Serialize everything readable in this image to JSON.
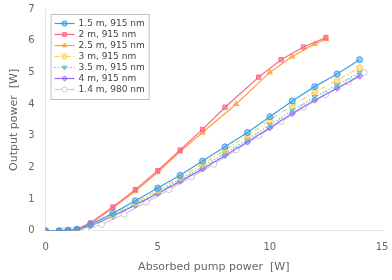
{
  "chart_data": {
    "type": "line",
    "xlabel": "Absorbed pump power  [W]",
    "ylabel": "Output power  [W]",
    "xlim": [
      0,
      15
    ],
    "ylim": [
      0,
      7
    ],
    "xticks": [
      0,
      5,
      10,
      15
    ],
    "yticks": [
      0,
      1,
      2,
      3,
      4,
      5,
      6,
      7
    ],
    "grid": false,
    "legend": "upper left",
    "series": [
      {
        "name": "1.5 m, 915 nm",
        "marker": "circle",
        "line_style": "solid",
        "x": [
          0.0,
          0.6,
          1.0,
          1.4,
          2.0,
          3.0,
          4.0,
          5.0,
          6.0,
          7.0,
          8.0,
          9.0,
          10.0,
          11.0,
          12.0,
          13.0,
          14.0
        ],
        "values": [
          0.0,
          0.0,
          0.02,
          0.05,
          0.2,
          0.55,
          0.95,
          1.35,
          1.75,
          2.2,
          2.65,
          3.1,
          3.6,
          4.1,
          4.55,
          4.95,
          5.4
        ]
      },
      {
        "name": "2 m, 915 nm",
        "marker": "square",
        "line_style": "solid",
        "x": [
          0.0,
          0.6,
          1.0,
          1.4,
          2.0,
          3.0,
          4.0,
          5.0,
          6.0,
          7.0,
          8.0,
          9.5,
          10.5,
          11.5,
          12.5
        ],
        "values": [
          0.0,
          0.0,
          0.02,
          0.05,
          0.25,
          0.75,
          1.3,
          1.9,
          2.55,
          3.2,
          3.9,
          4.85,
          5.4,
          5.8,
          6.1
        ]
      },
      {
        "name": "2.5 m, 915 nm",
        "marker": "triangle",
        "line_style": "solid",
        "x": [
          0.0,
          0.6,
          1.0,
          1.4,
          2.0,
          3.0,
          4.0,
          5.0,
          6.0,
          7.0,
          8.5,
          10.0,
          11.0,
          12.0,
          12.5
        ],
        "values": [
          0.0,
          0.0,
          0.02,
          0.05,
          0.22,
          0.72,
          1.25,
          1.85,
          2.5,
          3.1,
          4.0,
          5.0,
          5.5,
          5.9,
          6.05
        ]
      },
      {
        "name": "3 m, 915 nm",
        "marker": "circle",
        "line_style": "dashdot",
        "x": [
          0.0,
          0.6,
          1.0,
          1.4,
          2.0,
          3.0,
          4.0,
          5.0,
          6.0,
          7.0,
          8.0,
          9.0,
          10.0,
          11.0,
          12.0,
          13.0,
          14.0
        ],
        "values": [
          0.0,
          0.0,
          0.02,
          0.05,
          0.18,
          0.5,
          0.88,
          1.28,
          1.68,
          2.1,
          2.55,
          3.0,
          3.5,
          3.95,
          4.38,
          4.75,
          5.15
        ]
      },
      {
        "name": "3.5 m, 915 nm",
        "marker": "triangle_down",
        "line_style": "dotted",
        "x": [
          0.0,
          0.6,
          1.0,
          1.4,
          2.0,
          3.0,
          4.0,
          5.0,
          6.0,
          7.0,
          8.0,
          9.0,
          10.0,
          11.0,
          12.0,
          13.0,
          14.0
        ],
        "values": [
          0.0,
          0.0,
          0.02,
          0.04,
          0.16,
          0.48,
          0.84,
          1.22,
          1.62,
          2.02,
          2.45,
          2.88,
          3.35,
          3.8,
          4.22,
          4.6,
          5.0
        ]
      },
      {
        "name": "4 m, 915 nm",
        "marker": "diamond",
        "line_style": "solid",
        "x": [
          0.0,
          0.6,
          1.0,
          1.4,
          2.0,
          3.0,
          4.0,
          5.0,
          6.0,
          7.0,
          8.0,
          9.0,
          10.0,
          11.0,
          12.0,
          13.0,
          14.0
        ],
        "values": [
          0.0,
          0.0,
          0.02,
          0.04,
          0.15,
          0.46,
          0.81,
          1.18,
          1.56,
          1.95,
          2.38,
          2.8,
          3.25,
          3.7,
          4.12,
          4.5,
          4.88
        ]
      },
      {
        "name": "1.4 m, 980 nm",
        "marker": "open_circle",
        "line_style": "solid",
        "x": [
          0.0,
          0.8,
          1.2,
          1.8,
          2.5,
          3.5,
          4.5,
          5.5,
          6.5,
          7.5,
          8.5,
          9.5,
          10.5,
          11.5,
          12.5,
          13.5,
          14.2
        ],
        "values": [
          0.0,
          0.0,
          0.02,
          0.05,
          0.2,
          0.52,
          0.9,
          1.3,
          1.7,
          2.1,
          2.55,
          3.0,
          3.45,
          3.9,
          4.3,
          4.7,
          5.0
        ]
      }
    ]
  }
}
